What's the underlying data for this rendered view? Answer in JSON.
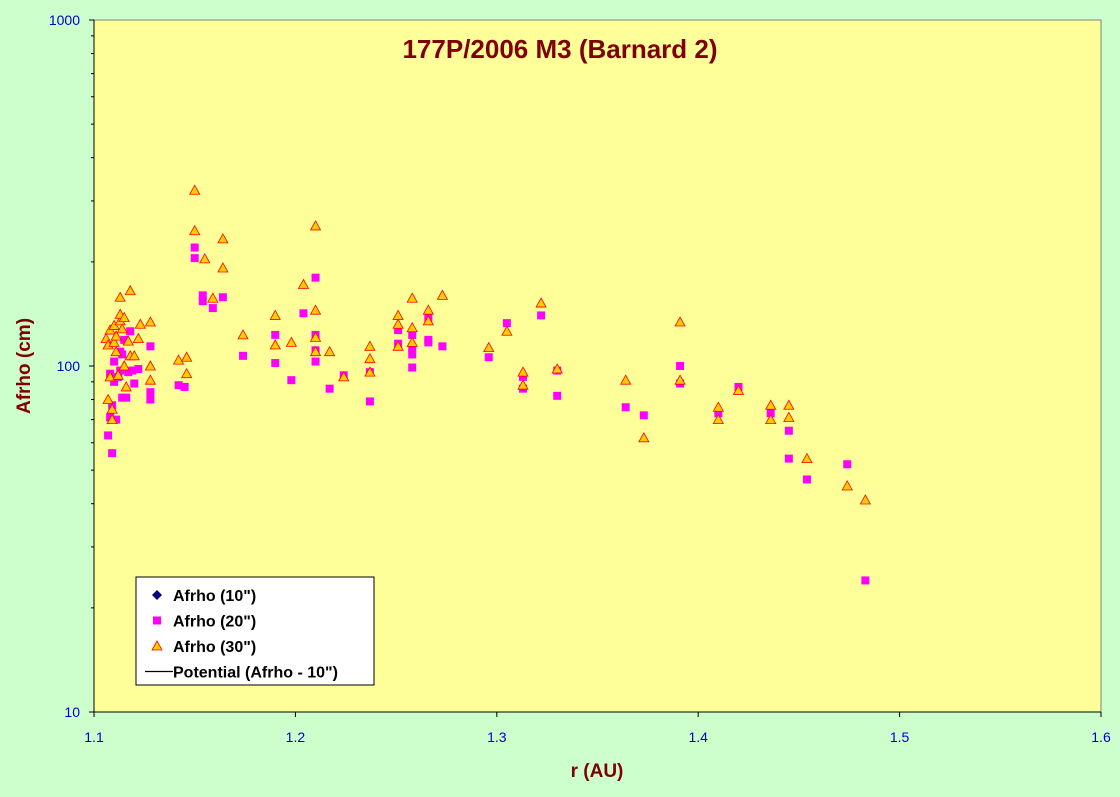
{
  "chart_data": {
    "type": "scatter",
    "title": "177P/2006 M3 (Barnard 2)",
    "xlabel": "r (AU)",
    "ylabel": "Afrho (cm)",
    "xlim": [
      1.1,
      1.6
    ],
    "ylim": [
      10,
      1000
    ],
    "y_scale": "log",
    "x_ticks": [
      "1.1",
      "1.2",
      "1.3",
      "1.4",
      "1.5",
      "1.6"
    ],
    "y_ticks": [
      "10",
      "100",
      "1000"
    ],
    "grid": false,
    "legend_position": "bottom-left",
    "colors": {
      "figure_bg": "#ccffcc",
      "plot_bg": "#ffff99",
      "title": "#800000",
      "axis_label": "#800000",
      "tick_label": "#0000cc",
      "series_10": "#000080",
      "series_20": "#ff00ff",
      "series_30_fill": "#ffcc00",
      "series_30_edge": "#ff0000"
    },
    "series": [
      {
        "name": "Afrho (10\")",
        "marker": "diamond",
        "points": []
      },
      {
        "name": "Afrho (20\")",
        "marker": "square",
        "points": [
          [
            1.107,
            63
          ],
          [
            1.108,
            95
          ],
          [
            1.108,
            71
          ],
          [
            1.109,
            56
          ],
          [
            1.109,
            77
          ],
          [
            1.11,
            90
          ],
          [
            1.11,
            103
          ],
          [
            1.111,
            70
          ],
          [
            1.112,
            93
          ],
          [
            1.113,
            97
          ],
          [
            1.113,
            110
          ],
          [
            1.114,
            81
          ],
          [
            1.114,
            108
          ],
          [
            1.115,
            119
          ],
          [
            1.116,
            81
          ],
          [
            1.117,
            96
          ],
          [
            1.118,
            126
          ],
          [
            1.119,
            97
          ],
          [
            1.12,
            89
          ],
          [
            1.122,
            98
          ],
          [
            1.128,
            80
          ],
          [
            1.128,
            114
          ],
          [
            1.128,
            84
          ],
          [
            1.142,
            88
          ],
          [
            1.145,
            87
          ],
          [
            1.15,
            220
          ],
          [
            1.15,
            205
          ],
          [
            1.154,
            160
          ],
          [
            1.154,
            154
          ],
          [
            1.159,
            147
          ],
          [
            1.164,
            158
          ],
          [
            1.174,
            107
          ],
          [
            1.19,
            123
          ],
          [
            1.19,
            102
          ],
          [
            1.198,
            91
          ],
          [
            1.204,
            142
          ],
          [
            1.21,
            180
          ],
          [
            1.21,
            123
          ],
          [
            1.21,
            111
          ],
          [
            1.21,
            103
          ],
          [
            1.217,
            86
          ],
          [
            1.224,
            94
          ],
          [
            1.237,
            96
          ],
          [
            1.237,
            79
          ],
          [
            1.251,
            127
          ],
          [
            1.251,
            116
          ],
          [
            1.258,
            123
          ],
          [
            1.258,
            113
          ],
          [
            1.258,
            108
          ],
          [
            1.258,
            99
          ],
          [
            1.266,
            138
          ],
          [
            1.266,
            119
          ],
          [
            1.266,
            117
          ],
          [
            1.273,
            114
          ],
          [
            1.296,
            106
          ],
          [
            1.305,
            133
          ],
          [
            1.313,
            86
          ],
          [
            1.313,
            93
          ],
          [
            1.322,
            140
          ],
          [
            1.33,
            97
          ],
          [
            1.33,
            82
          ],
          [
            1.364,
            76
          ],
          [
            1.373,
            72
          ],
          [
            1.391,
            100
          ],
          [
            1.391,
            89
          ],
          [
            1.41,
            73
          ],
          [
            1.42,
            87
          ],
          [
            1.436,
            73
          ],
          [
            1.445,
            65
          ],
          [
            1.445,
            54
          ],
          [
            1.454,
            47
          ],
          [
            1.474,
            52
          ],
          [
            1.483,
            24
          ]
        ]
      },
      {
        "name": "Afrho (30\")",
        "marker": "triangle",
        "points": [
          [
            1.106,
            120
          ],
          [
            1.107,
            80
          ],
          [
            1.107,
            115
          ],
          [
            1.108,
            127
          ],
          [
            1.108,
            93
          ],
          [
            1.109,
            75
          ],
          [
            1.109,
            70
          ],
          [
            1.11,
            117
          ],
          [
            1.11,
            131
          ],
          [
            1.111,
            110
          ],
          [
            1.111,
            122
          ],
          [
            1.112,
            94
          ],
          [
            1.113,
            135
          ],
          [
            1.113,
            141
          ],
          [
            1.113,
            158
          ],
          [
            1.114,
            128
          ],
          [
            1.115,
            138
          ],
          [
            1.115,
            100
          ],
          [
            1.116,
            87
          ],
          [
            1.117,
            118
          ],
          [
            1.118,
            165
          ],
          [
            1.118,
            107
          ],
          [
            1.12,
            107
          ],
          [
            1.122,
            120
          ],
          [
            1.123,
            132
          ],
          [
            1.128,
            134
          ],
          [
            1.128,
            100
          ],
          [
            1.128,
            91
          ],
          [
            1.142,
            104
          ],
          [
            1.146,
            106
          ],
          [
            1.146,
            95
          ],
          [
            1.15,
            322
          ],
          [
            1.15,
            246
          ],
          [
            1.155,
            204
          ],
          [
            1.159,
            157
          ],
          [
            1.164,
            233
          ],
          [
            1.164,
            192
          ],
          [
            1.174,
            123
          ],
          [
            1.19,
            140
          ],
          [
            1.19,
            115
          ],
          [
            1.198,
            117
          ],
          [
            1.204,
            172
          ],
          [
            1.21,
            254
          ],
          [
            1.21,
            145
          ],
          [
            1.21,
            121
          ],
          [
            1.21,
            110
          ],
          [
            1.217,
            110
          ],
          [
            1.224,
            93
          ],
          [
            1.237,
            114
          ],
          [
            1.237,
            105
          ],
          [
            1.237,
            96
          ],
          [
            1.251,
            140
          ],
          [
            1.251,
            132
          ],
          [
            1.251,
            114
          ],
          [
            1.258,
            157
          ],
          [
            1.258,
            129
          ],
          [
            1.258,
            117
          ],
          [
            1.266,
            145
          ],
          [
            1.266,
            135
          ],
          [
            1.273,
            160
          ],
          [
            1.296,
            113
          ],
          [
            1.305,
            126
          ],
          [
            1.313,
            96
          ],
          [
            1.313,
            88
          ],
          [
            1.322,
            152
          ],
          [
            1.33,
            98
          ],
          [
            1.364,
            91
          ],
          [
            1.373,
            62
          ],
          [
            1.391,
            134
          ],
          [
            1.391,
            91
          ],
          [
            1.41,
            76
          ],
          [
            1.41,
            70
          ],
          [
            1.42,
            85
          ],
          [
            1.436,
            77
          ],
          [
            1.436,
            70
          ],
          [
            1.445,
            77
          ],
          [
            1.445,
            71
          ],
          [
            1.454,
            54
          ],
          [
            1.474,
            45
          ],
          [
            1.483,
            41
          ]
        ]
      },
      {
        "name": "Potential (Afrho - 10\")",
        "marker": "line",
        "points": []
      }
    ]
  }
}
